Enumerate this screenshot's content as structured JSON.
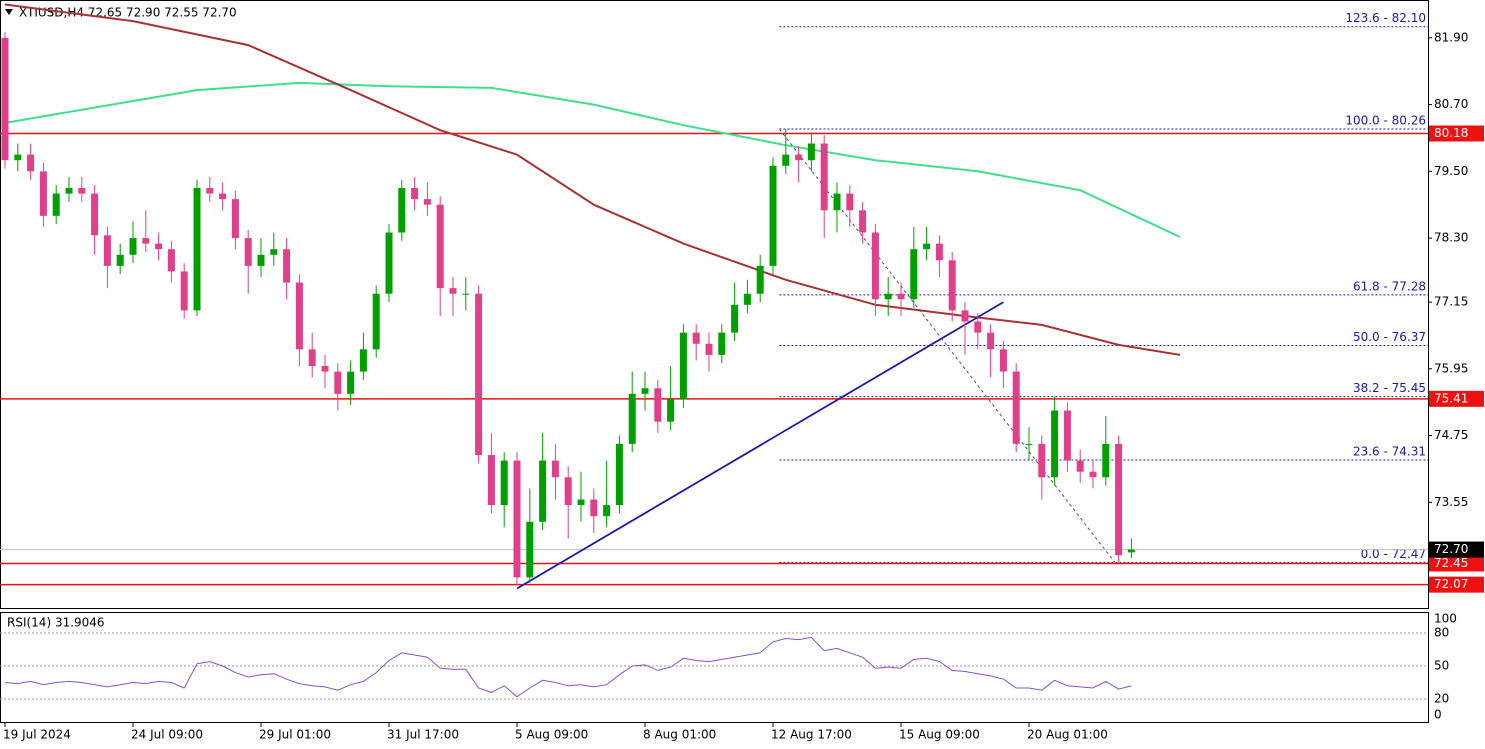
{
  "chart_data": {
    "type": "candlestick",
    "title": "XTIUSD,H4  72.65 72.90 72.55 72.70",
    "categories": [
      "19 Jul 2024",
      null,
      null,
      null,
      null,
      null,
      null,
      null,
      null,
      null,
      "24 Jul 09:00",
      null,
      null,
      null,
      null,
      null,
      null,
      null,
      null,
      null,
      "29 Jul 01:00",
      null,
      null,
      null,
      null,
      null,
      null,
      null,
      null,
      null,
      "31 Jul 17:00",
      null,
      null,
      null,
      null,
      null,
      null,
      null,
      null,
      null,
      "5 Aug 09:00",
      null,
      null,
      null,
      null,
      null,
      null,
      null,
      null,
      null,
      "8 Aug 01:00",
      null,
      null,
      null,
      null,
      null,
      null,
      null,
      null,
      null,
      "12 Aug 17:00",
      null,
      null,
      null,
      null,
      null,
      null,
      null,
      null,
      null,
      "15 Aug 09:00",
      null,
      null,
      null,
      null,
      null,
      null,
      null,
      null,
      null,
      "20 Aug 01:00",
      null,
      null,
      null,
      null,
      null,
      null,
      null,
      null
    ],
    "open": [
      81.9,
      79.7,
      79.8,
      79.5,
      78.7,
      79.1,
      79.2,
      79.1,
      78.35,
      77.8,
      78.0,
      78.3,
      78.2,
      78.1,
      77.7,
      77.0,
      79.2,
      79.1,
      79.0,
      78.3,
      77.8,
      78.0,
      78.1,
      77.5,
      76.3,
      76.0,
      75.9,
      75.5,
      75.9,
      76.3,
      77.3,
      78.4,
      79.2,
      79.0,
      78.9,
      77.4,
      77.3,
      77.3,
      74.4,
      73.5,
      74.3,
      72.2,
      73.2,
      74.3,
      74.0,
      73.5,
      73.6,
      73.3,
      73.5,
      74.6,
      75.5,
      75.6,
      75.0,
      75.4,
      76.6,
      76.4,
      76.2,
      76.6,
      77.1,
      77.3,
      77.8,
      79.6,
      79.8,
      79.7,
      80.0,
      78.8,
      79.1,
      78.8,
      78.4,
      77.2,
      77.3,
      77.2,
      78.1,
      78.2,
      77.9,
      77.0,
      76.8,
      76.6,
      76.3,
      75.9,
      74.6,
      74.6,
      74.0,
      75.2,
      74.3,
      74.1,
      74.0,
      74.6,
      72.65
    ],
    "high": [
      82.0,
      80.0,
      80.0,
      79.65,
      79.25,
      79.4,
      79.4,
      79.25,
      78.5,
      78.2,
      78.6,
      78.8,
      78.4,
      78.25,
      77.85,
      79.35,
      79.4,
      79.3,
      79.15,
      78.45,
      78.3,
      78.4,
      78.3,
      77.65,
      76.6,
      76.2,
      76.05,
      76.1,
      76.6,
      77.45,
      78.55,
      79.35,
      79.4,
      79.3,
      79.05,
      77.6,
      77.6,
      77.45,
      74.8,
      74.45,
      74.45,
      73.8,
      74.8,
      74.6,
      74.2,
      74.1,
      73.8,
      74.3,
      74.75,
      75.9,
      75.9,
      75.75,
      76.0,
      76.75,
      76.75,
      76.6,
      76.75,
      77.5,
      77.55,
      78.0,
      79.75,
      80.26,
      79.95,
      80.2,
      80.15,
      79.3,
      79.25,
      78.95,
      78.55,
      77.6,
      77.5,
      78.5,
      78.5,
      78.35,
      78.05,
      77.15,
      76.95,
      76.75,
      76.45,
      76.05,
      74.9,
      74.75,
      75.45,
      75.35,
      74.5,
      74.3,
      75.1,
      74.75,
      72.9
    ],
    "low": [
      79.55,
      79.5,
      79.35,
      78.5,
      78.55,
      78.95,
      78.95,
      78.0,
      77.4,
      77.65,
      77.85,
      78.05,
      77.9,
      77.5,
      76.85,
      76.9,
      78.95,
      78.8,
      78.1,
      77.3,
      77.6,
      77.8,
      77.2,
      76.0,
      75.8,
      75.6,
      75.2,
      75.3,
      75.75,
      76.15,
      77.15,
      78.25,
      78.8,
      78.7,
      76.9,
      76.9,
      77.0,
      74.25,
      73.35,
      73.1,
      72.07,
      72.1,
      73.05,
      73.6,
      72.9,
      73.2,
      73.0,
      73.1,
      73.35,
      74.45,
      75.2,
      74.8,
      74.85,
      75.25,
      76.1,
      75.9,
      76.05,
      76.45,
      76.95,
      77.15,
      77.65,
      79.45,
      79.3,
      79.5,
      78.3,
      78.4,
      78.5,
      78.2,
      76.9,
      76.9,
      76.9,
      77.05,
      77.9,
      77.6,
      76.8,
      76.2,
      76.3,
      75.8,
      75.6,
      74.45,
      74.3,
      73.6,
      73.85,
      74.1,
      73.9,
      73.8,
      73.85,
      72.47,
      72.55
    ],
    "close": [
      79.7,
      79.8,
      79.5,
      78.7,
      79.1,
      79.2,
      79.1,
      78.35,
      77.8,
      78.0,
      78.3,
      78.2,
      78.1,
      77.7,
      77.0,
      79.2,
      79.1,
      79.0,
      78.3,
      77.8,
      78.0,
      78.1,
      77.5,
      76.3,
      76.0,
      75.9,
      75.5,
      75.9,
      76.3,
      77.3,
      78.4,
      79.2,
      79.0,
      78.9,
      77.4,
      77.3,
      77.3,
      74.4,
      73.5,
      74.3,
      72.2,
      73.2,
      74.3,
      74.0,
      73.5,
      73.6,
      73.3,
      73.5,
      74.6,
      75.5,
      75.6,
      75.0,
      75.4,
      76.6,
      76.4,
      76.2,
      76.6,
      77.1,
      77.3,
      77.8,
      79.6,
      79.8,
      79.7,
      80.0,
      78.8,
      79.1,
      78.8,
      78.4,
      77.2,
      77.3,
      77.2,
      78.1,
      78.2,
      77.9,
      77.0,
      76.8,
      76.6,
      76.3,
      75.9,
      74.6,
      74.6,
      74.0,
      75.2,
      74.3,
      74.1,
      74.0,
      74.6,
      72.6,
      72.7
    ],
    "up_color": "#00a000",
    "down_color": "#e0408a",
    "ylim": [
      71.65,
      82.58
    ],
    "yticks": [
      {
        "value": 81.9,
        "label": "81.90"
      },
      {
        "value": 80.7,
        "label": "80.70"
      },
      {
        "value": 79.5,
        "label": "79.50"
      },
      {
        "value": 78.3,
        "label": "78.30"
      },
      77.15,
      75.95,
      74.75,
      73.55
    ],
    "overlays": [
      {
        "color": "#3ee08a",
        "x": [
          0,
          15,
          23,
          30,
          38,
          46,
          53,
          61,
          68,
          76,
          84,
          91.8
        ],
        "values": [
          80.37,
          80.96,
          81.09,
          81.03,
          81.0,
          80.7,
          80.33,
          79.97,
          79.7,
          79.5,
          79.16,
          78.32
        ]
      },
      {
        "color": "#a83232",
        "x": [
          0,
          10,
          19,
          27,
          34,
          40,
          46,
          53,
          61,
          68,
          75,
          81,
          87,
          91.8
        ],
        "values": [
          82.5,
          82.2,
          81.77,
          80.96,
          80.24,
          79.8,
          78.9,
          78.2,
          77.55,
          77.1,
          76.9,
          76.74,
          76.38,
          76.2
        ]
      }
    ],
    "trendline": {
      "color": "#1a1aa8",
      "x": [
        40,
        78
      ],
      "values": [
        72.0,
        77.15
      ]
    },
    "fib_line": {
      "color": "#555555",
      "x": [
        60.5,
        86.7
      ],
      "values": [
        80.26,
        72.47
      ]
    },
    "fib_levels": [
      {
        "value": 82.1,
        "label": "123.6 - 82.10"
      },
      {
        "value": 80.26,
        "label": "100.0 - 80.26"
      },
      {
        "value": 77.28,
        "label": "61.8 - 77.28"
      },
      {
        "value": 76.37,
        "label": "50.0 - 76.37"
      },
      {
        "value": 75.45,
        "label": "38.2 - 75.45"
      },
      {
        "value": 74.31,
        "label": "23.6 - 74.31"
      },
      {
        "value": 72.47,
        "label": "0.0 - 72.47"
      }
    ],
    "fib_start_x": 60.5,
    "fib_color": "#1a1aa8",
    "price_lines": [
      80.18,
      75.41,
      72.45,
      72.07
    ],
    "price_line_color": "#ee1111",
    "current_price": {
      "value": 72.7,
      "label": "72.70"
    },
    "rsi": {
      "title": "RSI(14) 31.9046",
      "color": "#8a50c8",
      "ylim": [
        0,
        100
      ],
      "yticks": [
        100,
        80,
        50,
        20,
        0
      ],
      "values": [
        35,
        34,
        36,
        33,
        35,
        36,
        35,
        33,
        31,
        33,
        35,
        34,
        36,
        35,
        30,
        52,
        54,
        50,
        44,
        40,
        42,
        43,
        38,
        34,
        32,
        31,
        28,
        33,
        36,
        44,
        55,
        62,
        60,
        58,
        48,
        47,
        47,
        30,
        26,
        32,
        22,
        30,
        37,
        35,
        32,
        33,
        31,
        33,
        42,
        50,
        51,
        46,
        49,
        57,
        55,
        54,
        56,
        58,
        60,
        62,
        72,
        75,
        74,
        76,
        64,
        66,
        62,
        58,
        48,
        49,
        48,
        56,
        57,
        54,
        46,
        45,
        43,
        41,
        38,
        30,
        30,
        28,
        37,
        32,
        31,
        30,
        36,
        29,
        31.9
      ]
    }
  }
}
